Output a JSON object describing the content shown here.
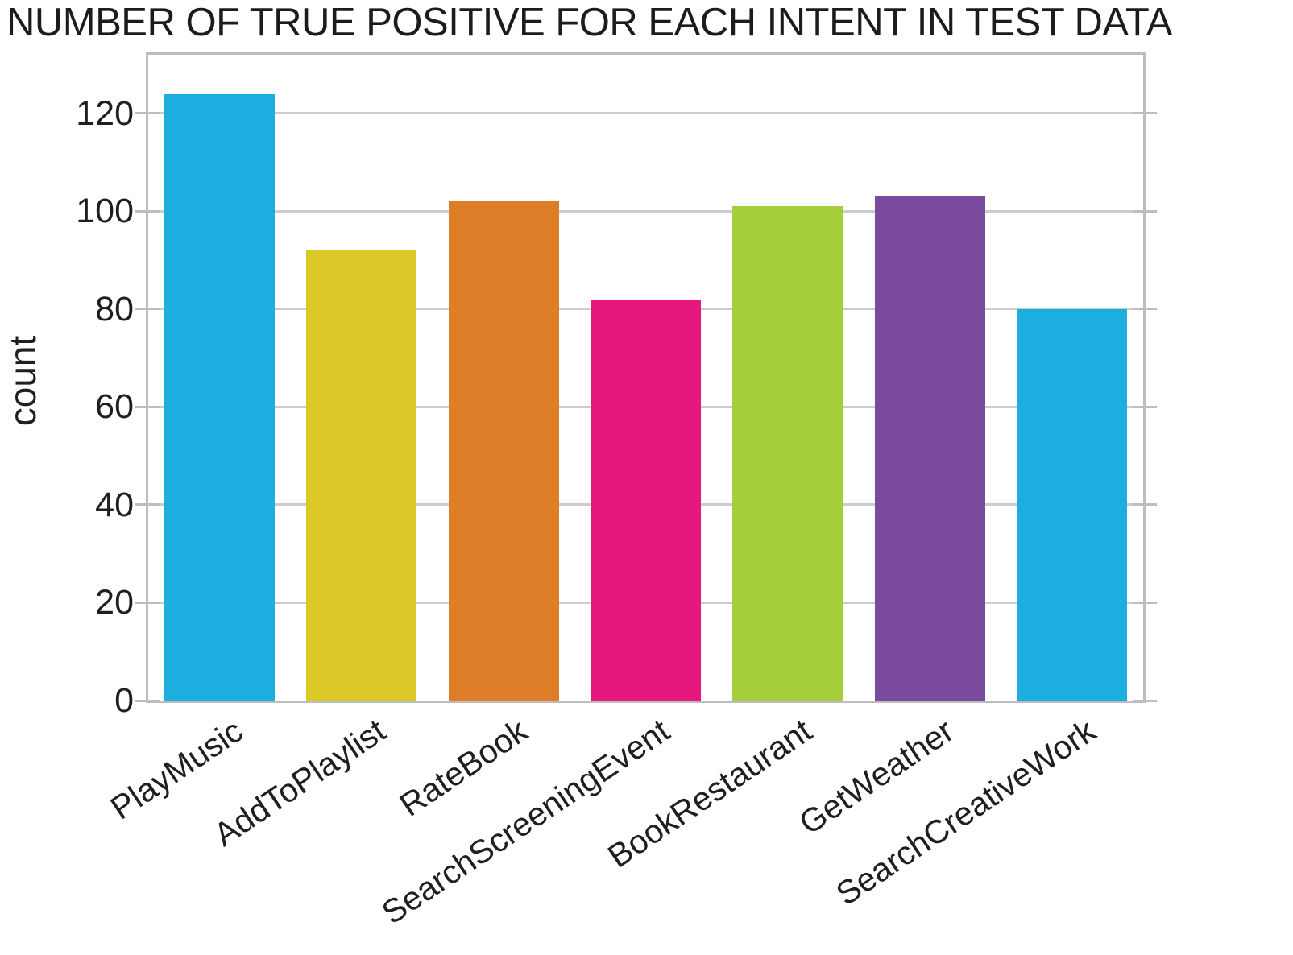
{
  "title": "NUMBER OF TRUE POSITIVE FOR EACH INTENT IN TEST DATA",
  "chart_data": {
    "type": "bar",
    "title": "NUMBER OF TRUE POSITIVE FOR EACH INTENT IN TEST DATA",
    "xlabel": "",
    "ylabel": "count",
    "categories": [
      "PlayMusic",
      "AddToPlaylist",
      "RateBook",
      "SearchScreeningEvent",
      "BookRestaurant",
      "GetWeather",
      "SearchCreativeWork"
    ],
    "values": [
      124,
      92,
      102,
      82,
      101,
      103,
      80
    ],
    "bar_colors": [
      "#1caede",
      "#dcc928",
      "#de7e28",
      "#e5197d",
      "#a4cf3a",
      "#794a9e",
      "#1caede"
    ],
    "yticks": [
      0,
      20,
      40,
      60,
      80,
      100,
      120
    ],
    "ylim": [
      0,
      132
    ],
    "grid": true,
    "legend_position": "none",
    "text_color": "#1f1f1f",
    "grid_color": "#cccccc",
    "frame_color": "#bdbdbd",
    "x_label_rotation_deg": -34
  }
}
